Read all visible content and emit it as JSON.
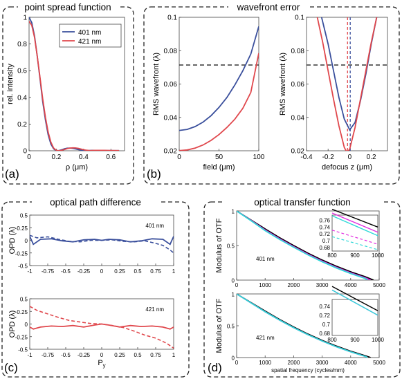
{
  "panels": {
    "a": {
      "title": "point spread function",
      "label": "(a)"
    },
    "b": {
      "title": "wavefront error",
      "label": "(b)"
    },
    "c": {
      "title": "optical path difference",
      "label": "(c)"
    },
    "d": {
      "title": "optical transfer function",
      "label": "(d)"
    }
  },
  "colors": {
    "blue": "#3a4f9c",
    "red": "#e0474c",
    "black": "#000000",
    "magenta": "#e12ce0",
    "cyan": "#2fd8d8",
    "dash": "#333333"
  },
  "chart_data": [
    {
      "id": "psf",
      "type": "line",
      "xlabel": "ρ (μm)",
      "ylabel": "rel. intensity",
      "xlim": [
        0,
        0.7
      ],
      "ylim": [
        0,
        1
      ],
      "xticks": [
        "0",
        "0.2",
        "0.4",
        "0.6"
      ],
      "yticks": [
        "0",
        "0.2",
        "0.4",
        "0.6",
        "0.8",
        "1"
      ],
      "legend": {
        "position": "top-right",
        "entries": [
          "401 nm",
          "421 nm"
        ]
      },
      "series": [
        {
          "name": "401 nm",
          "color": "blue",
          "x": [
            0,
            0.02,
            0.04,
            0.06,
            0.08,
            0.1,
            0.12,
            0.14,
            0.16,
            0.18,
            0.2,
            0.22,
            0.24,
            0.26,
            0.28,
            0.3,
            0.32,
            0.34,
            0.36,
            0.38,
            0.4,
            0.42,
            0.44,
            0.46,
            0.48,
            0.5,
            0.55,
            0.6,
            0.66
          ],
          "y": [
            1,
            0.96,
            0.86,
            0.71,
            0.54,
            0.37,
            0.23,
            0.12,
            0.05,
            0.015,
            0.0,
            0.002,
            0.008,
            0.015,
            0.019,
            0.02,
            0.018,
            0.014,
            0.009,
            0.005,
            0.002,
            0.001,
            0.002,
            0.003,
            0.003,
            0.003,
            0.002,
            0.001,
            0.001
          ]
        },
        {
          "name": "421 nm",
          "color": "red",
          "x": [
            0,
            0.02,
            0.04,
            0.06,
            0.08,
            0.1,
            0.12,
            0.14,
            0.16,
            0.18,
            0.2,
            0.22,
            0.24,
            0.26,
            0.28,
            0.3,
            0.32,
            0.34,
            0.36,
            0.38,
            0.4,
            0.42,
            0.44,
            0.46,
            0.48,
            0.5,
            0.55,
            0.6,
            0.66
          ],
          "y": [
            0.97,
            0.94,
            0.85,
            0.71,
            0.55,
            0.39,
            0.25,
            0.14,
            0.065,
            0.02,
            0.003,
            0.0,
            0.004,
            0.01,
            0.016,
            0.02,
            0.022,
            0.021,
            0.018,
            0.013,
            0.008,
            0.004,
            0.002,
            0.002,
            0.003,
            0.003,
            0.003,
            0.002,
            0.001
          ]
        }
      ]
    },
    {
      "id": "rms-field",
      "type": "line",
      "xlabel": "field (μm)",
      "ylabel": "RMS wavefront (λ)",
      "xlim": [
        0,
        100
      ],
      "ylim": [
        0.02,
        0.1
      ],
      "xticks": [
        "0",
        "50",
        "100"
      ],
      "yticks": [
        "0.02",
        "0.04",
        "0.06",
        "0.08",
        "0.1"
      ],
      "threshold_y": 0.0714,
      "series": [
        {
          "name": "401 nm",
          "color": "blue",
          "x": [
            0,
            10,
            20,
            30,
            40,
            50,
            60,
            70,
            80,
            90,
            100
          ],
          "y": [
            0.0322,
            0.0328,
            0.0345,
            0.0372,
            0.041,
            0.046,
            0.052,
            0.0595,
            0.068,
            0.078,
            0.0945
          ]
        },
        {
          "name": "421 nm",
          "color": "red",
          "x": [
            0,
            10,
            20,
            30,
            40,
            50,
            60,
            70,
            80,
            90,
            100
          ],
          "y": [
            0.0201,
            0.0205,
            0.0216,
            0.0235,
            0.0262,
            0.0297,
            0.034,
            0.039,
            0.0455,
            0.055,
            0.0785
          ]
        }
      ]
    },
    {
      "id": "rms-defocus",
      "type": "line",
      "xlabel": "defocus z (μm)",
      "ylabel": "RMS wavefront (λ)",
      "xlim": [
        -0.4,
        0.35
      ],
      "ylim": [
        0.02,
        0.1
      ],
      "xticks": [
        "-0.4",
        "-0.2",
        "0",
        "0.2"
      ],
      "yticks": [
        "0.02",
        "0.04",
        "0.06",
        "0.08",
        "0.1"
      ],
      "threshold_y": 0.0714,
      "focus_lines_x": [
        -0.02,
        0.005
      ],
      "series": [
        {
          "name": "401 nm",
          "color": "blue",
          "x": [
            -0.26,
            -0.2,
            -0.15,
            -0.1,
            -0.05,
            0.0,
            0.05,
            0.1,
            0.15,
            0.2,
            0.25
          ],
          "y": [
            0.1,
            0.084,
            0.068,
            0.052,
            0.039,
            0.0325,
            0.037,
            0.05,
            0.066,
            0.084,
            0.1
          ]
        },
        {
          "name": "421 nm",
          "color": "red",
          "x": [
            -0.3,
            -0.25,
            -0.2,
            -0.15,
            -0.1,
            -0.05,
            -0.025,
            0.0,
            0.05,
            0.1,
            0.15,
            0.2,
            0.25
          ],
          "y": [
            0.1,
            0.085,
            0.068,
            0.051,
            0.035,
            0.022,
            0.019,
            0.021,
            0.034,
            0.051,
            0.068,
            0.085,
            0.1
          ]
        }
      ]
    },
    {
      "id": "opd-401",
      "type": "line",
      "xlabel": "",
      "ylabel": "OPD (λ)",
      "annotation": "401 nm",
      "xlim": [
        -1,
        1
      ],
      "ylim": [
        -0.5,
        0.5
      ],
      "xticks": [
        "-1",
        "-0.75",
        "-0.5",
        "-0.25",
        "0",
        "0.25",
        "0.5",
        "0.75",
        "1"
      ],
      "yticks": [
        "-0.5",
        "-0.25",
        "0",
        "0.25",
        "0.5"
      ],
      "series": [
        {
          "name": "solid",
          "color": "blue",
          "x": [
            -1,
            -0.95,
            -0.85,
            -0.7,
            -0.55,
            -0.4,
            -0.25,
            -0.1,
            0,
            0.1,
            0.25,
            0.4,
            0.55,
            0.7,
            0.85,
            0.95,
            1
          ],
          "y": [
            0.08,
            -0.08,
            0.02,
            0.03,
            -0.01,
            -0.03,
            0.01,
            0.02,
            0.0,
            0.02,
            0.01,
            -0.03,
            -0.01,
            0.03,
            0.02,
            -0.08,
            0.08
          ]
        },
        {
          "name": "dashed",
          "dashed": true,
          "color": "blue",
          "x": [
            -1,
            -0.9,
            -0.75,
            -0.6,
            -0.45,
            -0.3,
            -0.15,
            0,
            0.15,
            0.3,
            0.45,
            0.6,
            0.75,
            0.85,
            0.95,
            1
          ],
          "y": [
            0.1,
            0.05,
            0.07,
            0.02,
            -0.02,
            -0.03,
            0.0,
            0.0,
            0.01,
            -0.02,
            -0.03,
            -0.01,
            -0.06,
            -0.1,
            -0.19,
            -0.25
          ]
        }
      ]
    },
    {
      "id": "opd-421",
      "type": "line",
      "xlabel": "Py",
      "ylabel": "OPD (λ)",
      "annotation": "421 nm",
      "xlim": [
        -1,
        1
      ],
      "ylim": [
        -0.5,
        0.5
      ],
      "xticks": [
        "-1",
        "-0.75",
        "-0.5",
        "-0.25",
        "0",
        "0.25",
        "0.5",
        "0.75",
        "1"
      ],
      "yticks": [
        "-0.5",
        "-0.25",
        "0",
        "0.25",
        "0.5"
      ],
      "series": [
        {
          "name": "solid",
          "color": "red",
          "x": [
            -1,
            -0.95,
            -0.85,
            -0.7,
            -0.55,
            -0.4,
            -0.25,
            -0.1,
            0,
            0.1,
            0.25,
            0.4,
            0.55,
            0.7,
            0.85,
            0.95,
            1
          ],
          "y": [
            -0.06,
            -0.1,
            -0.06,
            -0.04,
            -0.05,
            -0.03,
            -0.06,
            -0.02,
            0.0,
            -0.02,
            -0.06,
            -0.03,
            -0.05,
            -0.04,
            -0.06,
            -0.1,
            -0.06
          ]
        },
        {
          "name": "dashed",
          "dashed": true,
          "color": "red",
          "x": [
            -1,
            -0.9,
            -0.75,
            -0.6,
            -0.45,
            -0.3,
            -0.15,
            0,
            0.15,
            0.3,
            0.45,
            0.6,
            0.75,
            0.9,
            1
          ],
          "y": [
            0.35,
            0.27,
            0.2,
            0.13,
            0.07,
            0.04,
            0.01,
            0.0,
            -0.03,
            -0.07,
            -0.14,
            -0.22,
            -0.28,
            -0.38,
            -0.48
          ]
        }
      ]
    },
    {
      "id": "otf-401",
      "type": "line",
      "xlabel": "",
      "ylabel": "Modulus of OTF",
      "annotation": "401 nm",
      "xlim": [
        0,
        5000
      ],
      "ylim": [
        0,
        1
      ],
      "xticks": [
        "0",
        "1000",
        "2000",
        "3000",
        "4000",
        "5000"
      ],
      "yticks": [
        "0",
        "0.5",
        "1"
      ],
      "inset": {
        "xlim": [
          800,
          1000
        ],
        "ylim": [
          0.67,
          0.775
        ],
        "xticks": [
          "800",
          "900",
          "1000"
        ],
        "yticks": [
          "0.68",
          "0.7",
          "0.72",
          "0.74",
          "0.76"
        ]
      },
      "series": [
        {
          "name": "black",
          "color": "black",
          "x": [
            0,
            500,
            1000,
            1500,
            2000,
            2500,
            3000,
            3500,
            4000,
            4500,
            4800
          ],
          "y": [
            1,
            0.87,
            0.74,
            0.615,
            0.5,
            0.39,
            0.29,
            0.2,
            0.12,
            0.05,
            0.0
          ]
        },
        {
          "name": "magenta",
          "color": "magenta",
          "x": [
            0,
            500,
            1000,
            1500,
            2000,
            2500,
            3000,
            3500,
            4000,
            4500,
            4700
          ],
          "y": [
            1,
            0.865,
            0.725,
            0.6,
            0.485,
            0.375,
            0.275,
            0.185,
            0.105,
            0.035,
            0.0
          ]
        },
        {
          "name": "cyan",
          "color": "cyan",
          "x": [
            0,
            500,
            1000,
            1500,
            2000,
            2500,
            3000,
            3500,
            4000,
            4500,
            4600
          ],
          "y": [
            1,
            0.86,
            0.715,
            0.59,
            0.475,
            0.365,
            0.265,
            0.175,
            0.095,
            0.025,
            0.0
          ]
        }
      ]
    },
    {
      "id": "otf-421",
      "type": "line",
      "xlabel": "spatial frequency (cycles/mm)",
      "ylabel": "Modulus of OTF",
      "annotation": "421 nm",
      "xlim": [
        0,
        5000
      ],
      "ylim": [
        0,
        1
      ],
      "xticks": [
        "0",
        "1000",
        "2000",
        "3000",
        "4000",
        "5000"
      ],
      "yticks": [
        "0",
        "0.5",
        "1"
      ],
      "inset": {
        "xlim": [
          800,
          1000
        ],
        "ylim": [
          0.675,
          0.755
        ],
        "xticks": [
          "800",
          "900",
          "1000"
        ],
        "yticks": [
          "0.68",
          "0.7",
          "0.72",
          "0.74"
        ]
      },
      "series": [
        {
          "name": "black",
          "color": "black",
          "x": [
            0,
            500,
            1000,
            1500,
            2000,
            2500,
            3000,
            3500,
            4000,
            4500,
            4700
          ],
          "y": [
            1,
            0.865,
            0.73,
            0.6,
            0.48,
            0.37,
            0.27,
            0.18,
            0.1,
            0.03,
            0.0
          ]
        },
        {
          "name": "magenta",
          "color": "magenta",
          "x": [
            0,
            500,
            1000,
            1500,
            2000,
            2500,
            3000,
            3500,
            4000,
            4500,
            4600
          ],
          "y": [
            1,
            0.86,
            0.72,
            0.59,
            0.47,
            0.36,
            0.26,
            0.17,
            0.09,
            0.02,
            0.0
          ]
        },
        {
          "name": "cyan",
          "color": "cyan",
          "x": [
            0,
            500,
            1000,
            1500,
            2000,
            2500,
            3000,
            3500,
            4000,
            4500,
            4600
          ],
          "y": [
            1,
            0.86,
            0.72,
            0.59,
            0.47,
            0.36,
            0.26,
            0.17,
            0.09,
            0.02,
            0.0
          ]
        }
      ]
    }
  ]
}
